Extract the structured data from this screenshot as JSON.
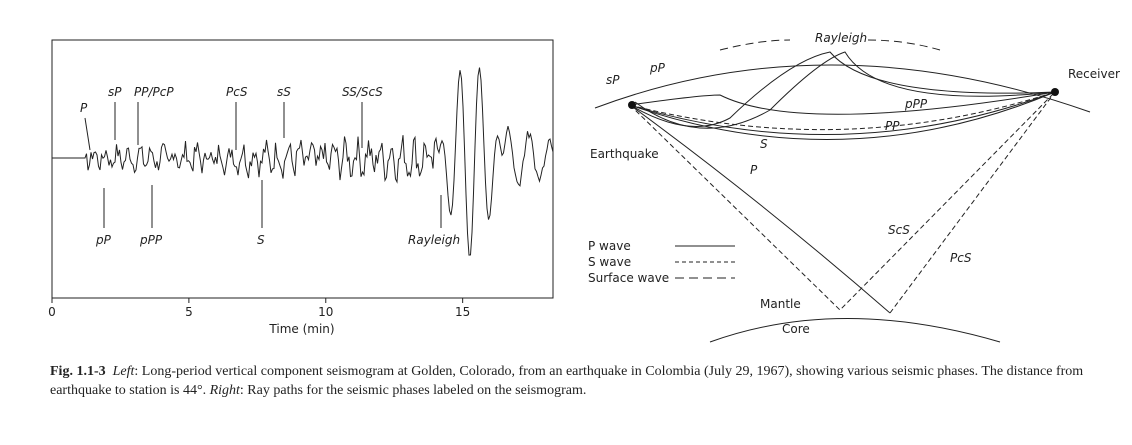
{
  "seismogram": {
    "xlabel": "Time (min)",
    "xlim": [
      0,
      18.3
    ],
    "xticks": [
      0,
      5,
      10,
      15
    ],
    "phases_above": [
      "P",
      "sP",
      "PP/PcP",
      "PcS",
      "sS",
      "SS/ScS"
    ],
    "phases_below": [
      "pP",
      "pPP",
      "S",
      "Rayleigh"
    ]
  },
  "ray_diagram": {
    "labels": [
      "Rayleigh",
      "sP",
      "pP",
      "pPP",
      "PP",
      "Receiver",
      "S",
      "P",
      "Earthquake",
      "ScS",
      "PcS",
      "Mantle",
      "Core"
    ],
    "legend": [
      "P wave",
      "S wave",
      "Surface wave"
    ]
  },
  "caption": {
    "label": "Fig. 1.1-3",
    "left_label": "Left",
    "left_text": ": Long-period vertical component seismogram at Golden, Colorado, from an earthquake in Colombia (July 29, 1967), showing various seismic phases. The distance from earthquake to station is 44°. ",
    "right_label": "Right",
    "right_text": ": Ray paths for the seismic phases labeled on the seismogram."
  }
}
